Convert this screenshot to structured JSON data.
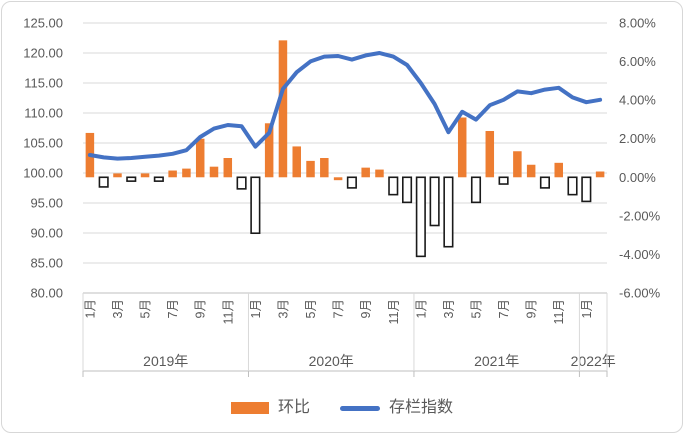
{
  "chart_data": {
    "type": "combo-bar-line",
    "title": "",
    "categories": [
      "2019-01",
      "2019-02",
      "2019-03",
      "2019-04",
      "2019-05",
      "2019-06",
      "2019-07",
      "2019-08",
      "2019-09",
      "2019-10",
      "2019-11",
      "2019-12",
      "2020-01",
      "2020-02",
      "2020-03",
      "2020-04",
      "2020-05",
      "2020-06",
      "2020-07",
      "2020-08",
      "2020-09",
      "2020-10",
      "2020-11",
      "2020-12",
      "2021-01",
      "2021-02",
      "2021-03",
      "2021-04",
      "2021-05",
      "2021-06",
      "2021-07",
      "2021-08",
      "2021-09",
      "2021-10",
      "2021-11",
      "2021-12",
      "2022-01",
      "2022-02"
    ],
    "series": [
      {
        "name": "环比",
        "type": "bar",
        "axis": "right",
        "unit": "%",
        "values": [
          2.3,
          -0.5,
          0.2,
          -0.2,
          0.2,
          -0.2,
          0.35,
          0.45,
          2.0,
          0.55,
          1.0,
          -0.6,
          -2.9,
          2.8,
          7.1,
          1.6,
          0.85,
          1.0,
          -0.15,
          -0.55,
          0.5,
          0.4,
          -0.9,
          -1.3,
          -4.1,
          -2.5,
          -3.6,
          3.1,
          -1.3,
          2.4,
          -0.35,
          1.35,
          0.65,
          -0.55,
          0.75,
          -0.9,
          -1.25,
          0.3
        ],
        "negative_style": "hollow-black-outline",
        "solid_negative_indexes": [
          18
        ]
      },
      {
        "name": "存栏指数",
        "type": "line",
        "axis": "left",
        "values": [
          103.0,
          102.6,
          102.4,
          102.5,
          102.7,
          102.9,
          103.2,
          103.8,
          106.0,
          107.4,
          108.0,
          107.8,
          104.4,
          106.7,
          114.0,
          116.8,
          118.6,
          119.4,
          119.5,
          118.9,
          119.6,
          120.0,
          119.4,
          118.0,
          115.0,
          111.5,
          106.8,
          110.2,
          108.9,
          111.3,
          112.2,
          113.6,
          113.3,
          113.9,
          114.2,
          112.6,
          111.8,
          112.2
        ]
      }
    ],
    "left_axis": {
      "min": 80,
      "max": 125,
      "tick_labels": [
        "125.00",
        "120.00",
        "115.00",
        "110.00",
        "105.00",
        "100.00",
        "95.00",
        "90.00",
        "85.00",
        "80.00"
      ]
    },
    "right_axis": {
      "min": -6,
      "max": 8,
      "tick_labels": [
        "8.00%",
        "6.00%",
        "4.00%",
        "2.00%",
        "0.00%",
        "-2.00%",
        "-4.00%",
        "-6.00%"
      ]
    },
    "x_axis": {
      "year_groups": [
        {
          "label": "2019年",
          "months": 12,
          "month_tick_labels": [
            "1月",
            "3月",
            "5月",
            "7月",
            "9月",
            "11月"
          ]
        },
        {
          "label": "2020年",
          "months": 12,
          "month_tick_labels": [
            "1月",
            "3月",
            "5月",
            "7月",
            "9月",
            "11月"
          ]
        },
        {
          "label": "2021年",
          "months": 12,
          "month_tick_labels": [
            "1月",
            "3月",
            "5月",
            "7月",
            "9月",
            "11月"
          ]
        },
        {
          "label": "2022年",
          "months": 2,
          "month_tick_labels": [
            "1月"
          ]
        }
      ]
    },
    "legend_position": "bottom",
    "grid": "horizontal",
    "colors": {
      "bar": "#ED7D31",
      "line": "#4472C4",
      "negative_bar_fill": "#FFFFFF",
      "negative_bar_border": "#1a1a1a",
      "gridline": "#D9D9D9",
      "axis_line": "#BFBFBF",
      "text": "#595959"
    }
  }
}
